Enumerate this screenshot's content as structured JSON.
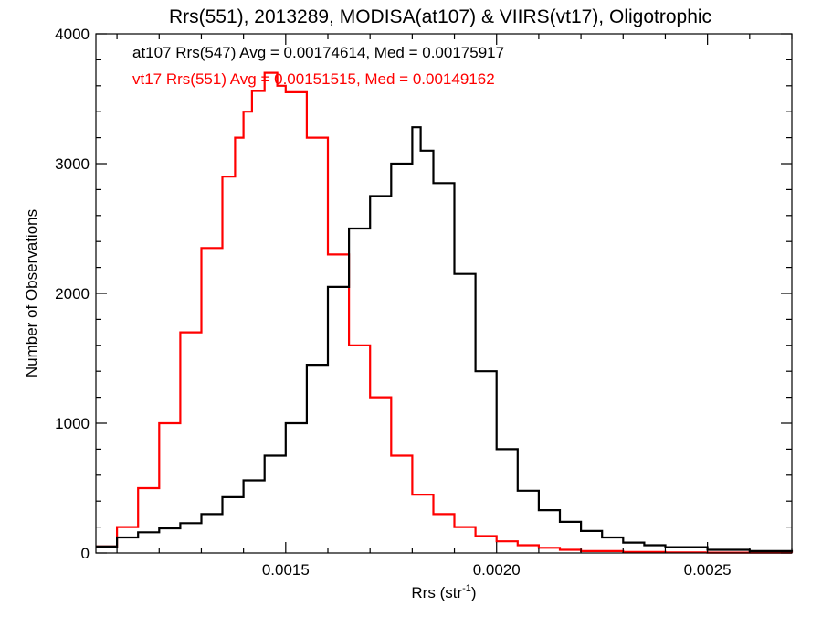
{
  "chart_data": {
    "type": "line",
    "step": true,
    "title": "Rrs(551), 2013289, MODISA(at107) & VIIRS(vt17), Oligotrophic",
    "xlabel_base": "Rrs (str",
    "xlabel_sup": "-1",
    "xlabel_end": ")",
    "ylabel": "Number of Observations",
    "xlim": [
      0.00105,
      0.0027
    ],
    "ylim": [
      0,
      4000
    ],
    "xticks": [
      0.0015,
      0.002,
      0.0025
    ],
    "xtick_labels": [
      "0.0015",
      "0.0020",
      "0.0025"
    ],
    "yticks": [
      0,
      1000,
      2000,
      3000,
      4000
    ],
    "ytick_labels": [
      "0",
      "1000",
      "2000",
      "3000",
      "4000"
    ],
    "grid": false,
    "annotations": [
      {
        "text": "at107 Rrs(547) Avg = 0.00174614, Med = 0.00175917",
        "color": "#000000"
      },
      {
        "text": "vt17 Rrs(551) Avg = 0.00151515, Med = 0.00149162",
        "color": "#ff0000"
      }
    ],
    "series": [
      {
        "color": "#000000",
        "x": [
          0.00105,
          0.0011,
          0.00115,
          0.0012,
          0.00125,
          0.0013,
          0.00135,
          0.0014,
          0.00145,
          0.0015,
          0.00155,
          0.0016,
          0.00165,
          0.0017,
          0.00175,
          0.0018,
          0.00182,
          0.00185,
          0.0019,
          0.00195,
          0.002,
          0.00205,
          0.0021,
          0.00215,
          0.0022,
          0.00225,
          0.0023,
          0.00235,
          0.0024,
          0.0025,
          0.0026,
          0.0027
        ],
        "y": [
          50,
          120,
          160,
          190,
          230,
          300,
          430,
          560,
          750,
          1000,
          1450,
          2050,
          2500,
          2750,
          3000,
          3280,
          3100,
          2850,
          2150,
          1400,
          800,
          480,
          330,
          240,
          170,
          120,
          80,
          60,
          45,
          25,
          15,
          10
        ]
      },
      {
        "color": "#ff0000",
        "x": [
          0.00105,
          0.0011,
          0.00115,
          0.0012,
          0.00125,
          0.0013,
          0.00135,
          0.00138,
          0.0014,
          0.00142,
          0.00145,
          0.00148,
          0.0015,
          0.00155,
          0.0016,
          0.00165,
          0.0017,
          0.00175,
          0.0018,
          0.00185,
          0.0019,
          0.00195,
          0.002,
          0.00205,
          0.0021,
          0.00215,
          0.0022,
          0.0023,
          0.0024,
          0.0025,
          0.0027
        ],
        "y": [
          50,
          200,
          500,
          1000,
          1700,
          2350,
          2900,
          3200,
          3400,
          3560,
          3700,
          3600,
          3550,
          3200,
          2300,
          1600,
          1200,
          750,
          450,
          300,
          200,
          130,
          90,
          60,
          40,
          25,
          15,
          8,
          5,
          3,
          2
        ]
      }
    ]
  }
}
